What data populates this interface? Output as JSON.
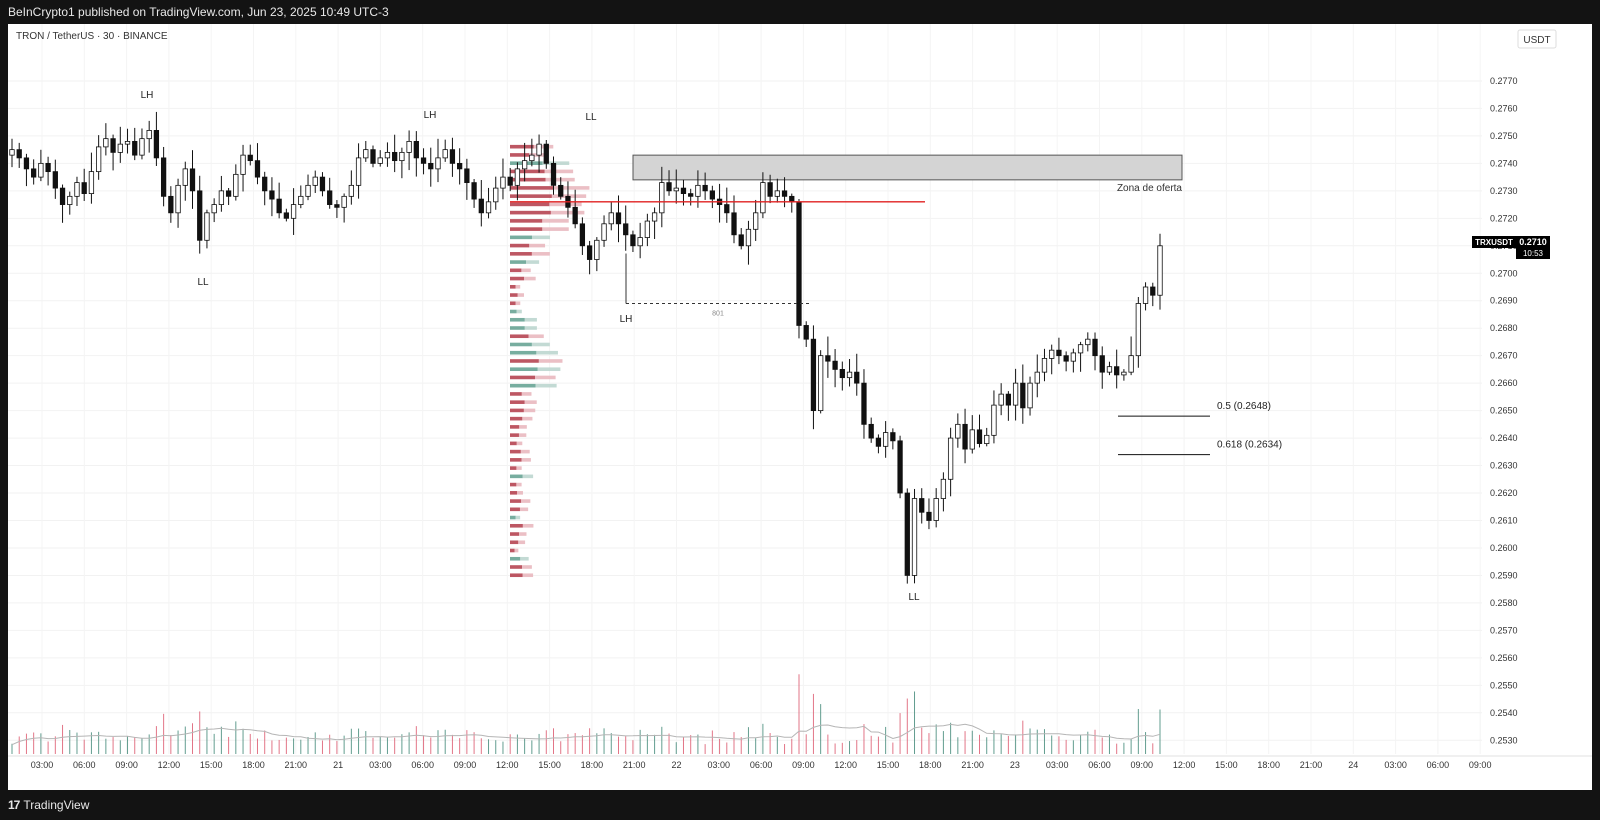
{
  "header": {
    "published": "BeInCrypto1 published on TradingView.com, Jun 23, 2025 10:49 UTC-3"
  },
  "footer": {
    "brand": "TradingView",
    "logo_icon": "tradingview-logo-icon"
  },
  "chart_data": {
    "type": "candlestick",
    "symbol_label": "TRON / TetherUS · 30 · BINANCE",
    "currency_label": "USDT",
    "ticker": "TRXUSDT",
    "last_price": "0.2710",
    "countdown": "10:53",
    "y_ticks": [
      "0.2770",
      "0.2760",
      "0.2750",
      "0.2740",
      "0.2730",
      "0.2720",
      "0.2710",
      "0.2700",
      "0.2690",
      "0.2680",
      "0.2670",
      "0.2660",
      "0.2650",
      "0.2640",
      "0.2630",
      "0.2620",
      "0.2610",
      "0.2600",
      "0.2590",
      "0.2580",
      "0.2570",
      "0.2560",
      "0.2550",
      "0.2540",
      "0.2530"
    ],
    "ylim": [
      0.2525,
      0.2782
    ],
    "x_ticks": [
      "03:00",
      "06:00",
      "09:00",
      "12:00",
      "15:00",
      "18:00",
      "21:00",
      "21",
      "03:00",
      "06:00",
      "09:00",
      "12:00",
      "15:00",
      "18:00",
      "21:00",
      "22",
      "03:00",
      "06:00",
      "09:00",
      "12:00",
      "15:00",
      "18:00",
      "21:00",
      "23",
      "03:00",
      "06:00",
      "09:00",
      "12:00",
      "15:00",
      "18:00",
      "21:00",
      "24",
      "03:00",
      "06:00",
      "09:00"
    ],
    "closes": [
      0.2745,
      0.2742,
      0.2738,
      0.2735,
      0.274,
      0.2737,
      0.2731,
      0.2725,
      0.2728,
      0.2733,
      0.2729,
      0.2737,
      0.2746,
      0.2749,
      0.2744,
      0.2747,
      0.2748,
      0.2743,
      0.2749,
      0.2752,
      0.2742,
      0.2728,
      0.2722,
      0.2732,
      0.2738,
      0.273,
      0.2712,
      0.2722,
      0.2725,
      0.273,
      0.2728,
      0.2736,
      0.2743,
      0.2741,
      0.2735,
      0.273,
      0.2727,
      0.2722,
      0.272,
      0.2725,
      0.2728,
      0.2732,
      0.2735,
      0.273,
      0.2725,
      0.2724,
      0.2728,
      0.2732,
      0.2742,
      0.2745,
      0.274,
      0.2742,
      0.2744,
      0.2741,
      0.2744,
      0.2748,
      0.2742,
      0.274,
      0.2738,
      0.2742,
      0.2745,
      0.274,
      0.2738,
      0.2733,
      0.2727,
      0.2722,
      0.2726,
      0.2731,
      0.2735,
      0.2732,
      0.2738,
      0.2741,
      0.2743,
      0.2747,
      0.274,
      0.2732,
      0.2728,
      0.2724,
      0.2718,
      0.271,
      0.2705,
      0.2712,
      0.2718,
      0.2722,
      0.2718,
      0.2714,
      0.271,
      0.2713,
      0.2719,
      0.2722,
      0.2733,
      0.273,
      0.2731,
      0.2729,
      0.2728,
      0.2732,
      0.273,
      0.2727,
      0.2725,
      0.2722,
      0.2714,
      0.271,
      0.2716,
      0.2722,
      0.2733,
      0.2728,
      0.273,
      0.2728,
      0.2726,
      0.2681,
      0.2676,
      0.265,
      0.267,
      0.2668,
      0.2665,
      0.2662,
      0.2664,
      0.266,
      0.2645,
      0.264,
      0.2637,
      0.2642,
      0.2639,
      0.262,
      0.259,
      0.2618,
      0.2613,
      0.261,
      0.2618,
      0.2625,
      0.264,
      0.2645,
      0.2636,
      0.2643,
      0.2638,
      0.2641,
      0.2652,
      0.2656,
      0.2652,
      0.266,
      0.2651,
      0.266,
      0.2664,
      0.2669,
      0.2672,
      0.267,
      0.2668,
      0.2671,
      0.2674,
      0.2676,
      0.267,
      0.2664,
      0.2666,
      0.2663,
      0.2664,
      0.267,
      0.2689,
      0.2695,
      0.2692,
      0.271
    ],
    "volume_ma_label_shown": false,
    "annotations": [
      {
        "text": "LH",
        "index": 33
      },
      {
        "text": "LL",
        "index": 46
      },
      {
        "text": "LH",
        "index": 100
      },
      {
        "text": "LH",
        "index": 146
      },
      {
        "text": "LL",
        "index": 171
      },
      {
        "text": "LL",
        "index": 357
      }
    ],
    "supply_zone": {
      "label": "Zona de oferta",
      "y_low": 0.2734,
      "y_high": 0.2743
    },
    "red_level": 0.2726,
    "dashed_range": {
      "y": 0.2689,
      "label": "801"
    },
    "fib_levels": [
      {
        "label": "0.5 (0.2648)",
        "value": 0.2648
      },
      {
        "label": "0.618 (0.2634)",
        "value": 0.2634
      }
    ]
  }
}
